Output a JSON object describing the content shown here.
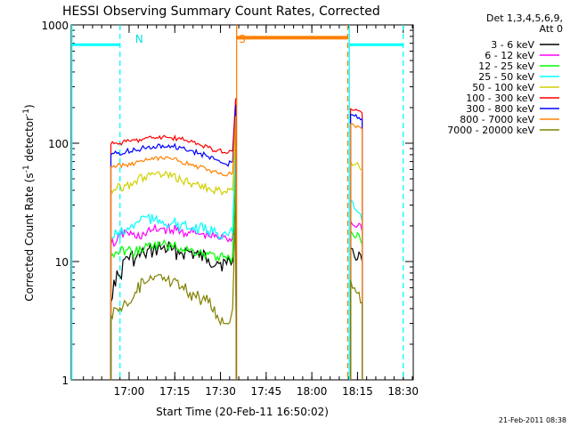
{
  "chart_data": {
    "type": "line",
    "title": "HESSI Observing Summary Count Rates, Corrected",
    "xlabel": "Start Time (20-Feb-11 16:50:02)",
    "ylabel_pre": "Corrected Count Rate (s",
    "ylabel_sup1": "-1",
    "ylabel_mid": " detector",
    "ylabel_sup2": "-1",
    "ylabel_post": ")",
    "yscale": "log",
    "ylim": [
      1,
      1000
    ],
    "y_ticks": [
      {
        "value": 1,
        "label": "1"
      },
      {
        "value": 10,
        "label": "10"
      },
      {
        "value": 100,
        "label": "100"
      },
      {
        "value": 1000,
        "label": "1000"
      }
    ],
    "x_unit": "minutes after 16:50:02",
    "xlim": [
      -9.0,
      103.3
    ],
    "x_ticks": [
      {
        "value": 10.0,
        "label": "17:00"
      },
      {
        "value": 25.0,
        "label": "17:15"
      },
      {
        "value": 40.0,
        "label": "17:30"
      },
      {
        "value": 55.0,
        "label": "17:45"
      },
      {
        "value": 70.0,
        "label": "18:00"
      },
      {
        "value": 85.0,
        "label": "18:15"
      },
      {
        "value": 100.0,
        "label": "18:30"
      }
    ],
    "legend_header": [
      "Det 1,3,4,5,6,9,",
      "Att 0"
    ],
    "legend_position": "right",
    "footer": "21-Feb-2011 08:38",
    "annotations": [
      {
        "text": "N",
        "x": 12.0,
        "color": "#00e0e0"
      },
      {
        "text": "S",
        "x": 46.0,
        "color": "#ff8000"
      }
    ],
    "night_intervals": [
      {
        "start": -9.0,
        "end": 7.0,
        "level": 680,
        "color": "#00ffff"
      },
      {
        "start": 82.3,
        "end": 100.0,
        "level": 680,
        "color": "#00ffff"
      }
    ],
    "saa_intervals": [
      {
        "start": 45.3,
        "end": 81.8,
        "level": 780,
        "color": "#ff8000"
      }
    ],
    "vertical_lines": [
      {
        "x": -8.8,
        "color": "#00ffff",
        "style": "solid"
      },
      {
        "x": 7.0,
        "color": "#00ffff",
        "style": "dashed"
      },
      {
        "x": 45.3,
        "color": "#ff8000",
        "style": "solid"
      },
      {
        "x": 81.8,
        "color": "#ff8000",
        "style": "dashed"
      },
      {
        "x": 82.3,
        "color": "#00ffff",
        "style": "solid"
      },
      {
        "x": 100.0,
        "color": "#00ffff",
        "style": "dashed"
      }
    ],
    "series": [
      {
        "name": "3 - 6 keV",
        "color": "#000000",
        "points": [
          [
            4.0,
            1
          ],
          [
            4.0,
            4.5
          ],
          [
            5,
            7
          ],
          [
            7,
            7.5
          ],
          [
            9,
            11
          ],
          [
            12,
            10.5
          ],
          [
            15,
            11.5
          ],
          [
            18,
            12.5
          ],
          [
            21,
            13
          ],
          [
            24,
            12.5
          ],
          [
            27,
            12
          ],
          [
            30,
            12
          ],
          [
            33,
            11
          ],
          [
            36,
            10.5
          ],
          [
            39,
            10
          ],
          [
            42,
            9.5
          ],
          [
            44,
            10
          ],
          [
            45,
            70
          ],
          [
            45.2,
            1
          ]
        ],
        "points2": [
          [
            82.7,
            1
          ],
          [
            82.7,
            13
          ],
          [
            84,
            11
          ],
          [
            85.5,
            12
          ],
          [
            86.5,
            10
          ],
          [
            86.5,
            1
          ]
        ]
      },
      {
        "name": "6 - 12 keV",
        "color": "#ff00ff",
        "points": [
          [
            4.0,
            1
          ],
          [
            4.0,
            14
          ],
          [
            6,
            15
          ],
          [
            9,
            18
          ],
          [
            12,
            16
          ],
          [
            15,
            17
          ],
          [
            18,
            18.5
          ],
          [
            21,
            19
          ],
          [
            24,
            18.5
          ],
          [
            27,
            18
          ],
          [
            30,
            17.5
          ],
          [
            33,
            17
          ],
          [
            36,
            16.5
          ],
          [
            39,
            16
          ],
          [
            42,
            15.5
          ],
          [
            44,
            16
          ],
          [
            45,
            90
          ],
          [
            45.2,
            1
          ]
        ],
        "points2": [
          [
            82.7,
            1
          ],
          [
            82.7,
            22
          ],
          [
            84,
            20
          ],
          [
            85.5,
            21
          ],
          [
            86.5,
            18
          ],
          [
            86.5,
            1
          ]
        ]
      },
      {
        "name": "12 - 25 keV",
        "color": "#00ff00",
        "points": [
          [
            4.0,
            1
          ],
          [
            4.0,
            11
          ],
          [
            6,
            12
          ],
          [
            9,
            12.5
          ],
          [
            12,
            12
          ],
          [
            15,
            13
          ],
          [
            18,
            13.5
          ],
          [
            21,
            14
          ],
          [
            24,
            13.5
          ],
          [
            27,
            13
          ],
          [
            30,
            12.5
          ],
          [
            33,
            12
          ],
          [
            36,
            11.5
          ],
          [
            39,
            11
          ],
          [
            42,
            10.5
          ],
          [
            44,
            11
          ],
          [
            45,
            80
          ],
          [
            45.2,
            1
          ]
        ],
        "points2": [
          [
            82.7,
            1
          ],
          [
            82.7,
            18
          ],
          [
            84,
            16
          ],
          [
            85.5,
            17
          ],
          [
            86.5,
            14
          ],
          [
            86.5,
            1
          ]
        ]
      },
      {
        "name": "25 - 50 keV",
        "color": "#00ffff",
        "points": [
          [
            4.0,
            1
          ],
          [
            4.0,
            16
          ],
          [
            6,
            17
          ],
          [
            9,
            18
          ],
          [
            12,
            21
          ],
          [
            15,
            24
          ],
          [
            18,
            22
          ],
          [
            21,
            22
          ],
          [
            24,
            21
          ],
          [
            27,
            20
          ],
          [
            30,
            19
          ],
          [
            33,
            19
          ],
          [
            36,
            18
          ],
          [
            39,
            17.5
          ],
          [
            42,
            17
          ],
          [
            44,
            17.5
          ],
          [
            45,
            100
          ],
          [
            45.2,
            1
          ]
        ],
        "points2": [
          [
            82.7,
            1
          ],
          [
            82.7,
            33
          ],
          [
            84,
            28
          ],
          [
            85.5,
            26
          ],
          [
            86.5,
            22
          ],
          [
            86.5,
            1
          ]
        ]
      },
      {
        "name": "50 - 100 keV",
        "color": "#d0d000",
        "points": [
          [
            4.0,
            1
          ],
          [
            4.0,
            40
          ],
          [
            6,
            42
          ],
          [
            9,
            44
          ],
          [
            12,
            48
          ],
          [
            15,
            52
          ],
          [
            18,
            55
          ],
          [
            21,
            54
          ],
          [
            24,
            52
          ],
          [
            27,
            49
          ],
          [
            30,
            46
          ],
          [
            33,
            44
          ],
          [
            36,
            42
          ],
          [
            39,
            40
          ],
          [
            42,
            38
          ],
          [
            44,
            40
          ],
          [
            45,
            120
          ],
          [
            45.2,
            1
          ]
        ],
        "points2": [
          [
            82.7,
            1
          ],
          [
            82.7,
            70
          ],
          [
            84,
            66
          ],
          [
            85.5,
            64
          ],
          [
            86.5,
            60
          ],
          [
            86.5,
            1
          ]
        ]
      },
      {
        "name": "100 - 300 keV",
        "color": "#ff0000",
        "points": [
          [
            4.0,
            1
          ],
          [
            4.0,
            98
          ],
          [
            6,
            100
          ],
          [
            9,
            103
          ],
          [
            12,
            106
          ],
          [
            15,
            109
          ],
          [
            18,
            112
          ],
          [
            21,
            113
          ],
          [
            24,
            111
          ],
          [
            27,
            108
          ],
          [
            30,
            103
          ],
          [
            33,
            98
          ],
          [
            36,
            92
          ],
          [
            39,
            87
          ],
          [
            42,
            82
          ],
          [
            44,
            86
          ],
          [
            45,
            240
          ],
          [
            45.2,
            1
          ]
        ],
        "points2": [
          [
            82.7,
            1
          ],
          [
            82.7,
            195
          ],
          [
            84,
            190
          ],
          [
            85.5,
            188
          ],
          [
            86.5,
            180
          ],
          [
            86.5,
            1
          ]
        ]
      },
      {
        "name": "300 - 800 keV",
        "color": "#0000ff",
        "points": [
          [
            4.0,
            1
          ],
          [
            4.0,
            80
          ],
          [
            6,
            82
          ],
          [
            9,
            85
          ],
          [
            12,
            88
          ],
          [
            15,
            91
          ],
          [
            18,
            94
          ],
          [
            21,
            96
          ],
          [
            24,
            95
          ],
          [
            27,
            92
          ],
          [
            30,
            87
          ],
          [
            33,
            82
          ],
          [
            36,
            77
          ],
          [
            39,
            72
          ],
          [
            42,
            66
          ],
          [
            44,
            70
          ],
          [
            45,
            210
          ],
          [
            45.2,
            1
          ]
        ],
        "points2": [
          [
            82.7,
            1
          ],
          [
            82.7,
            175
          ],
          [
            84,
            170
          ],
          [
            85.5,
            165
          ],
          [
            86.5,
            160
          ],
          [
            86.5,
            1
          ]
        ]
      },
      {
        "name": "800 - 7000 keV",
        "color": "#ff8000",
        "points": [
          [
            4.0,
            1
          ],
          [
            4.0,
            63
          ],
          [
            6,
            64
          ],
          [
            9,
            66
          ],
          [
            12,
            68
          ],
          [
            15,
            71
          ],
          [
            18,
            73
          ],
          [
            21,
            74
          ],
          [
            24,
            73
          ],
          [
            27,
            70
          ],
          [
            30,
            67
          ],
          [
            33,
            63
          ],
          [
            36,
            60
          ],
          [
            39,
            56
          ],
          [
            42,
            53
          ],
          [
            44,
            56
          ],
          [
            45,
            170
          ],
          [
            45.2,
            1
          ]
        ],
        "points2": [
          [
            82.7,
            1
          ],
          [
            82.7,
            145
          ],
          [
            84,
            140
          ],
          [
            85.5,
            138
          ],
          [
            86.5,
            132
          ],
          [
            86.5,
            1
          ]
        ]
      },
      {
        "name": "7000 - 20000 keV",
        "color": "#808000",
        "points": [
          [
            4.0,
            1
          ],
          [
            4.0,
            3.5
          ],
          [
            6,
            4
          ],
          [
            9,
            4.5
          ],
          [
            12,
            5.5
          ],
          [
            15,
            6.5
          ],
          [
            18,
            7
          ],
          [
            21,
            7
          ],
          [
            24,
            6.5
          ],
          [
            27,
            6
          ],
          [
            30,
            5.5
          ],
          [
            33,
            5
          ],
          [
            36,
            4.5
          ],
          [
            39,
            3.5
          ],
          [
            42,
            3
          ],
          [
            44,
            4
          ],
          [
            45,
            30
          ],
          [
            45.2,
            1
          ]
        ],
        "points2": [
          [
            82.7,
            1
          ],
          [
            82.7,
            7
          ],
          [
            84,
            6
          ],
          [
            85.5,
            5.5
          ],
          [
            86.5,
            4.5
          ],
          [
            86.5,
            1
          ]
        ]
      }
    ]
  }
}
